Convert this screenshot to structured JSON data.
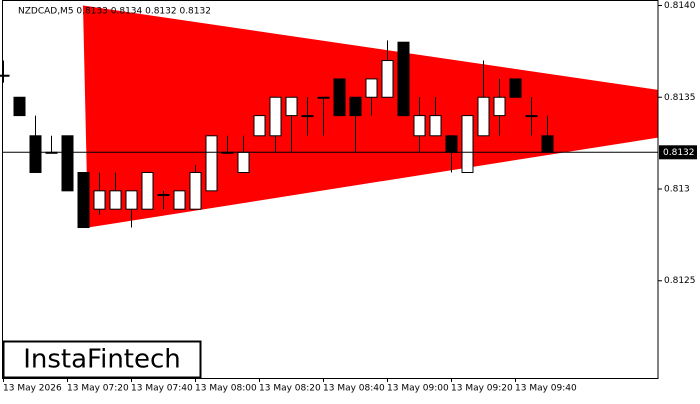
{
  "chart_data": {
    "type": "candlestick",
    "title": "NZDCAD,M5  0.8133 0.8134 0.8132 0.8132",
    "categories": [
      "13 May 2026",
      null,
      null,
      null,
      "13 May 07:20",
      null,
      null,
      null,
      "13 May 07:40",
      null,
      null,
      null,
      "13 May 08:00",
      null,
      null,
      null,
      "13 May 08:20",
      null,
      null,
      null,
      "13 May 08:40",
      null,
      null,
      null,
      "13 May 09:00",
      null,
      null,
      null,
      "13 May 09:20",
      null,
      null,
      null,
      "13 May 09:40",
      null,
      null
    ],
    "open": [
      0.81362,
      0.8135,
      0.81329,
      0.8132,
      0.81329,
      0.81309,
      0.81289,
      0.81289,
      0.81289,
      0.81289,
      0.81297,
      0.81289,
      0.81289,
      0.81299,
      0.8132,
      0.81309,
      0.81329,
      0.81329,
      0.8134,
      0.8134,
      0.8135,
      0.8136,
      0.8135,
      0.8135,
      0.8135,
      0.8138,
      0.81329,
      0.81329,
      0.81329,
      0.81309,
      0.81329,
      0.8134,
      0.8136,
      0.8134,
      0.81329
    ],
    "high": [
      0.8137,
      0.8135,
      0.8134,
      0.81329,
      0.81329,
      0.81309,
      0.81309,
      0.81309,
      0.81299,
      0.81309,
      0.81299,
      0.81299,
      0.81313,
      0.81329,
      0.81329,
      0.81329,
      0.8134,
      0.8135,
      0.8135,
      0.8135,
      0.8135,
      0.8136,
      0.8135,
      0.8136,
      0.81381,
      0.8138,
      0.8135,
      0.8135,
      0.81329,
      0.8134,
      0.8137,
      0.8136,
      0.8136,
      0.8135,
      0.8134
    ],
    "low": [
      0.81358,
      0.8134,
      0.81309,
      0.8132,
      0.81299,
      0.81279,
      0.81286,
      0.81289,
      0.81279,
      0.81289,
      0.81289,
      0.81289,
      0.81289,
      0.81299,
      0.8132,
      0.81309,
      0.81329,
      0.8132,
      0.8132,
      0.81329,
      0.81329,
      0.8134,
      0.8132,
      0.8134,
      0.8135,
      0.8134,
      0.8132,
      0.81329,
      0.81309,
      0.81309,
      0.81329,
      0.81329,
      0.8135,
      0.81329,
      0.8132
    ],
    "close": [
      0.81362,
      0.8134,
      0.81309,
      0.8132,
      0.81299,
      0.81279,
      0.81299,
      0.81299,
      0.81299,
      0.81309,
      0.81297,
      0.81299,
      0.81309,
      0.81329,
      0.8132,
      0.8132,
      0.8134,
      0.8135,
      0.8135,
      0.8134,
      0.8135,
      0.8134,
      0.8134,
      0.8136,
      0.8137,
      0.8134,
      0.8134,
      0.8134,
      0.8132,
      0.8134,
      0.8135,
      0.8135,
      0.8135,
      0.8134,
      0.8132
    ],
    "ylim": [
      0.81197,
      0.81403
    ],
    "yticks": [
      {
        "value": 0.814,
        "label": "0.8140"
      },
      0.8135,
      0.813,
      0.8125
    ],
    "current_price": 0.8132,
    "pattern": {
      "color": "#ff0000",
      "upper": [
        0.814,
        0.81354
      ],
      "lower": [
        0.81279,
        0.81328
      ]
    },
    "watermark": "InstaFintech"
  }
}
